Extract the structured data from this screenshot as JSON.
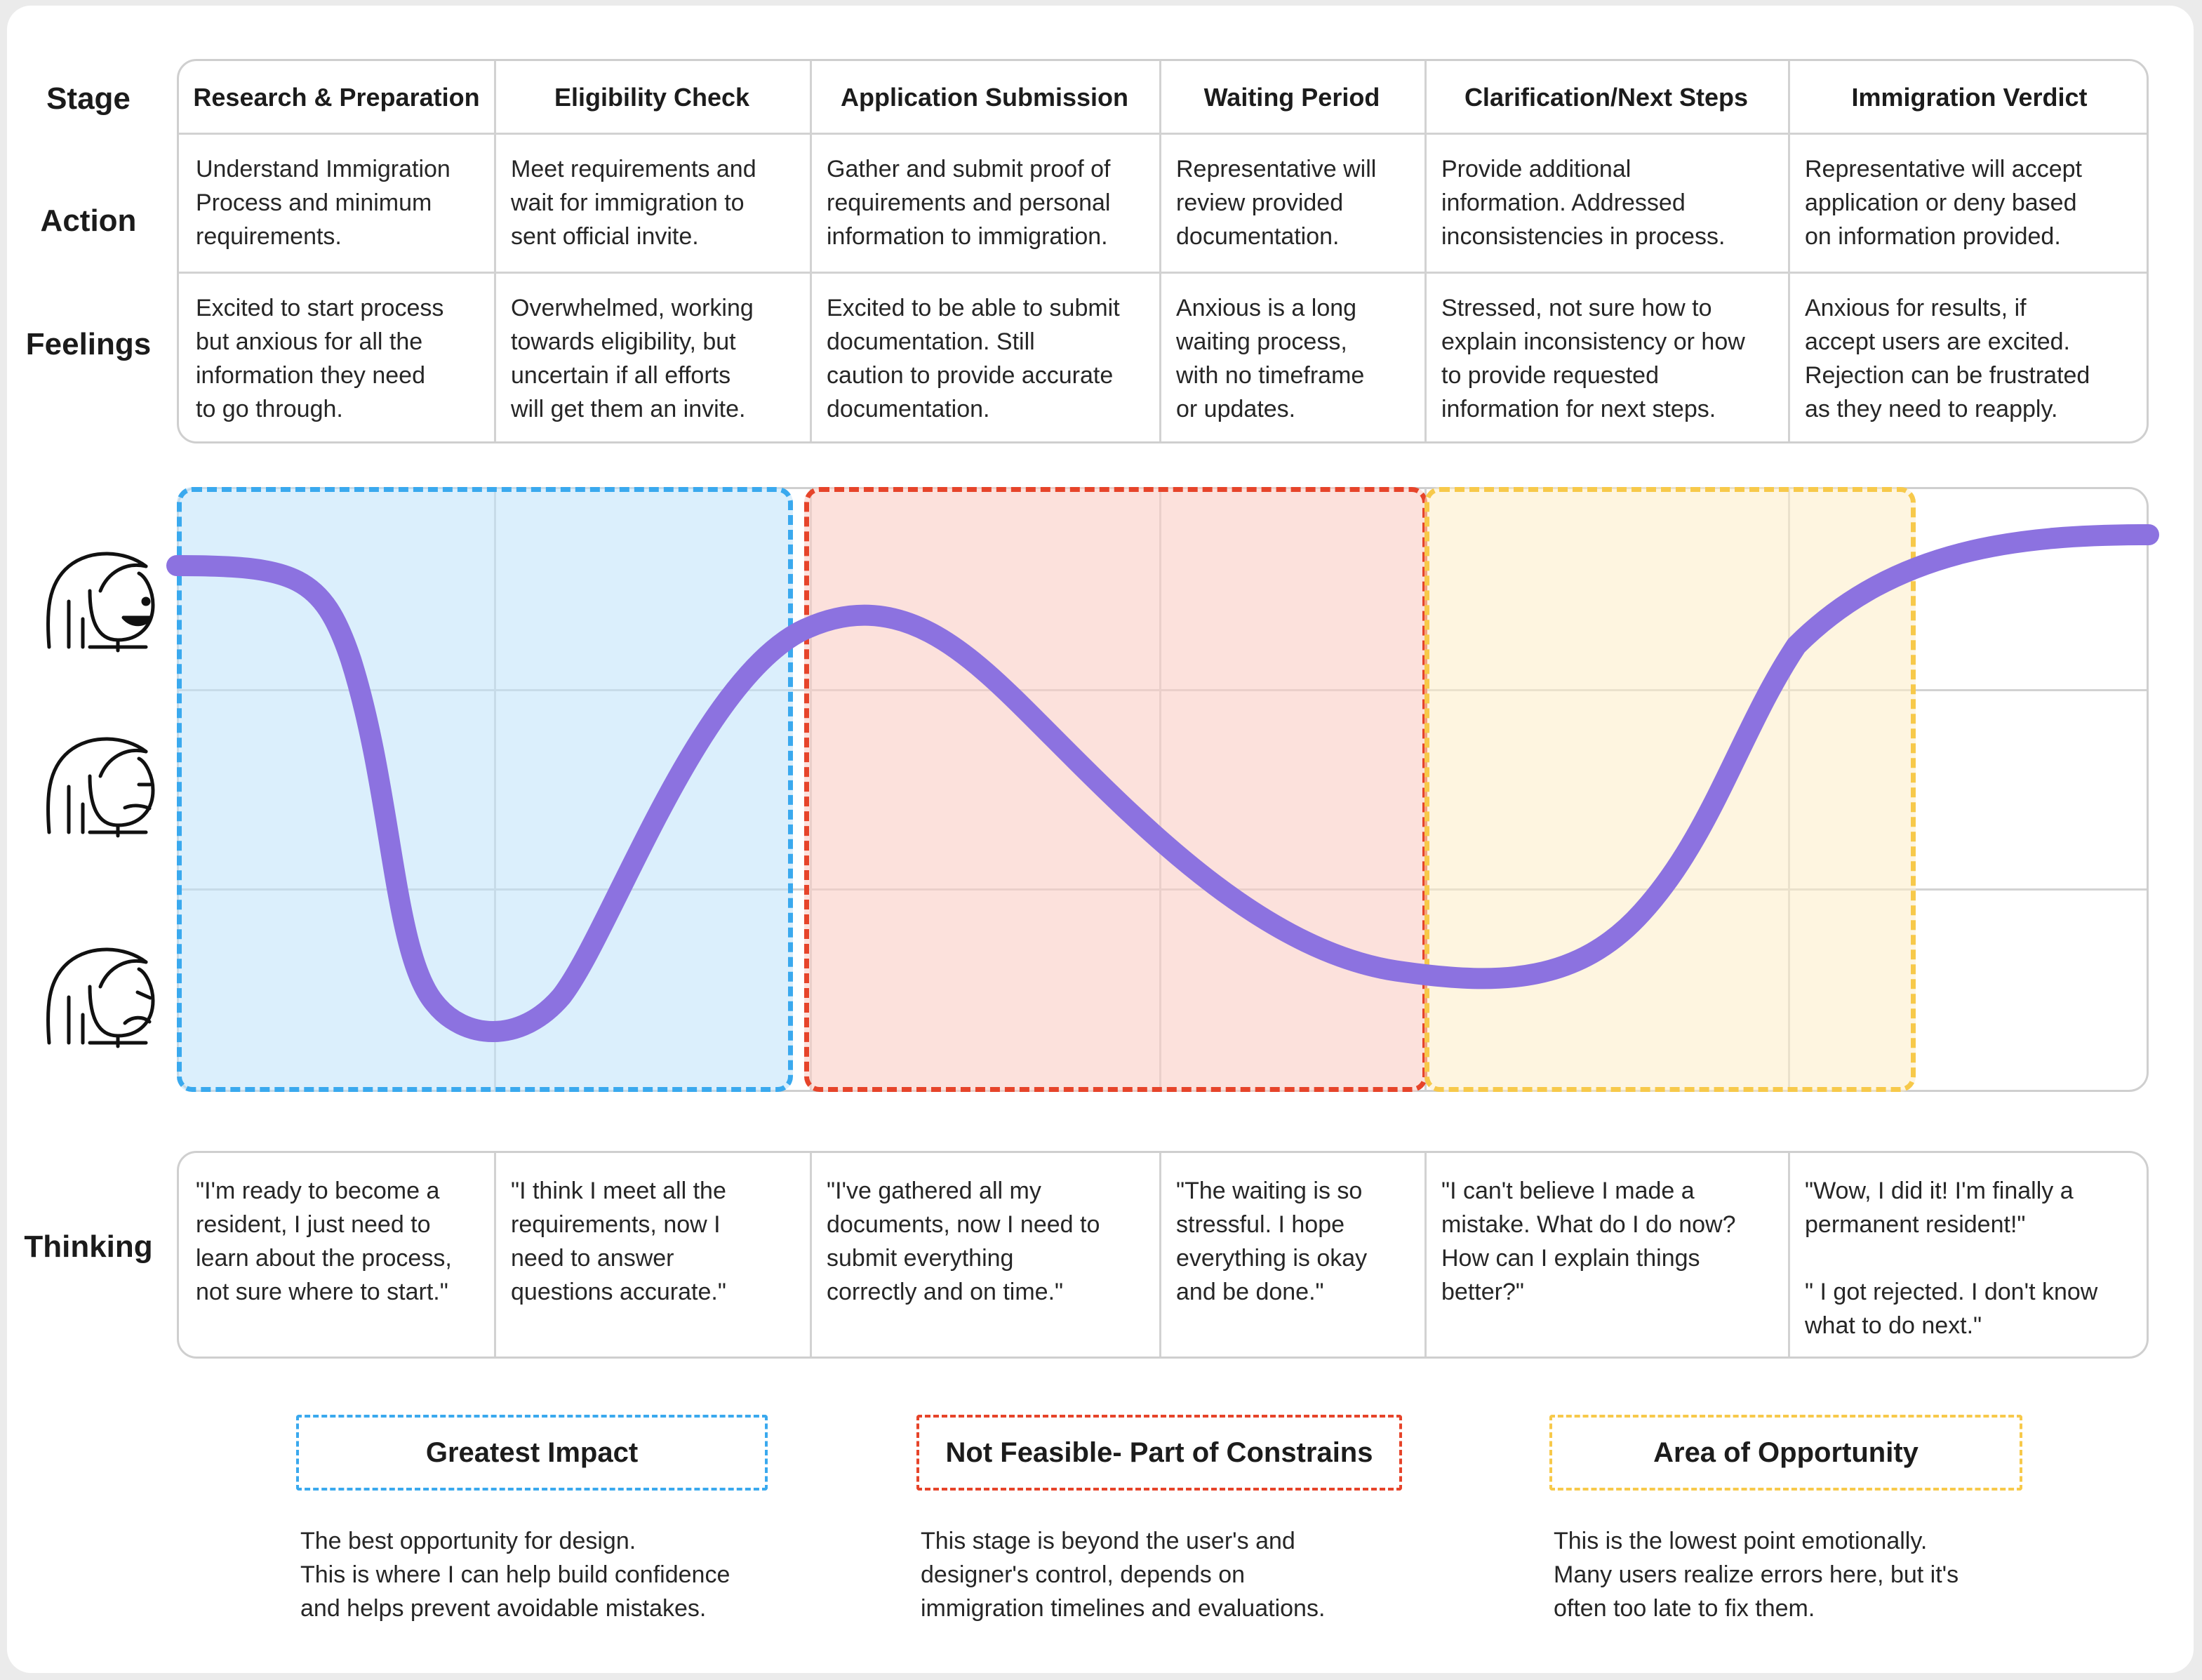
{
  "row_labels": {
    "stage": "Stage",
    "action": "Action",
    "feelings": "Feelings",
    "thinking": "Thinking"
  },
  "stages": [
    {
      "title": "Research & Preparation",
      "action": "Understand Immigration\nProcess and minimum\nrequirements.",
      "feelings": "Excited to start process\nbut anxious for all the\ninformation they need\nto go through.",
      "thinking": "\"I'm ready to become a\nresident, I just need to\nlearn about the process,\nnot sure where to start.\""
    },
    {
      "title": "Eligibility Check",
      "action": "Meet  requirements and\nwait for immigration to\nsent official invite.",
      "feelings": "Overwhelmed, working\ntowards eligibility, but\nuncertain if all efforts\nwill get them an invite.",
      "thinking": "\"I think I meet all the\nrequirements, now I\nneed to answer\nquestions accurate.\""
    },
    {
      "title": "Application Submission",
      "action": "Gather and submit proof of\nrequirements and personal\ninformation to immigration.",
      "feelings": "Excited to be able to submit\ndocumentation. Still\ncaution to provide accurate\ndocumentation.",
      "thinking": "\"I've gathered all my\ndocuments, now I need to\nsubmit everything\ncorrectly and  on time.\""
    },
    {
      "title": "Waiting Period",
      "action": "Representative will\nreview provided\ndocumentation.",
      "feelings": "Anxious is a long\nwaiting process,\nwith no timeframe\nor updates.",
      "thinking": "\"The waiting is so\nstressful. I hope\neverything is okay\nand be done.\""
    },
    {
      "title": "Clarification/Next Steps",
      "action": "Provide additional\ninformation. Addressed\ninconsistencies in process.",
      "feelings": "Stressed, not sure how to\nexplain inconsistency or how\nto provide requested\ninformation for next steps.",
      "thinking": "\"I can't believe I made a\nmistake. What do I do now?\nHow can I explain things\nbetter?\""
    },
    {
      "title": "Immigration Verdict",
      "action": "Representative will accept\napplication or deny based\non information provided.",
      "feelings": "Anxious for results, if\naccept users are excited.\nRejection can be frustrated\nas they need to reapply.",
      "thinking": "\"Wow, I did it! I'm finally a\npermanent resident!\"\n\n\" I got rejected. I don't know\nwhat to do next.\""
    }
  ],
  "emotion_levels": [
    "happy-face-icon",
    "neutral-face-icon",
    "sad-face-icon"
  ],
  "emotion_curve_stage_values": [
    0.9,
    0.0,
    0.7,
    0.35,
    0.0,
    0.9
  ],
  "colors": {
    "curve": "#8c72e0",
    "greatest_impact": "#3aa9ee",
    "not_feasible": "#e6442a",
    "opportunity": "#f7c94a"
  },
  "legend": [
    {
      "label": "Greatest Impact",
      "description": "The best opportunity for design.\nThis is where I can help build confidence\nand helps prevent avoidable mistakes."
    },
    {
      "label": "Not Feasible- Part of Constrains",
      "description": "This stage is beyond the user's and\ndesigner's control, depends on\nimmigration timelines and evaluations."
    },
    {
      "label": "Area of Opportunity",
      "description": "This is the lowest point emotionally.\nMany users realize errors here, but it's\noften too late to fix them."
    }
  ]
}
